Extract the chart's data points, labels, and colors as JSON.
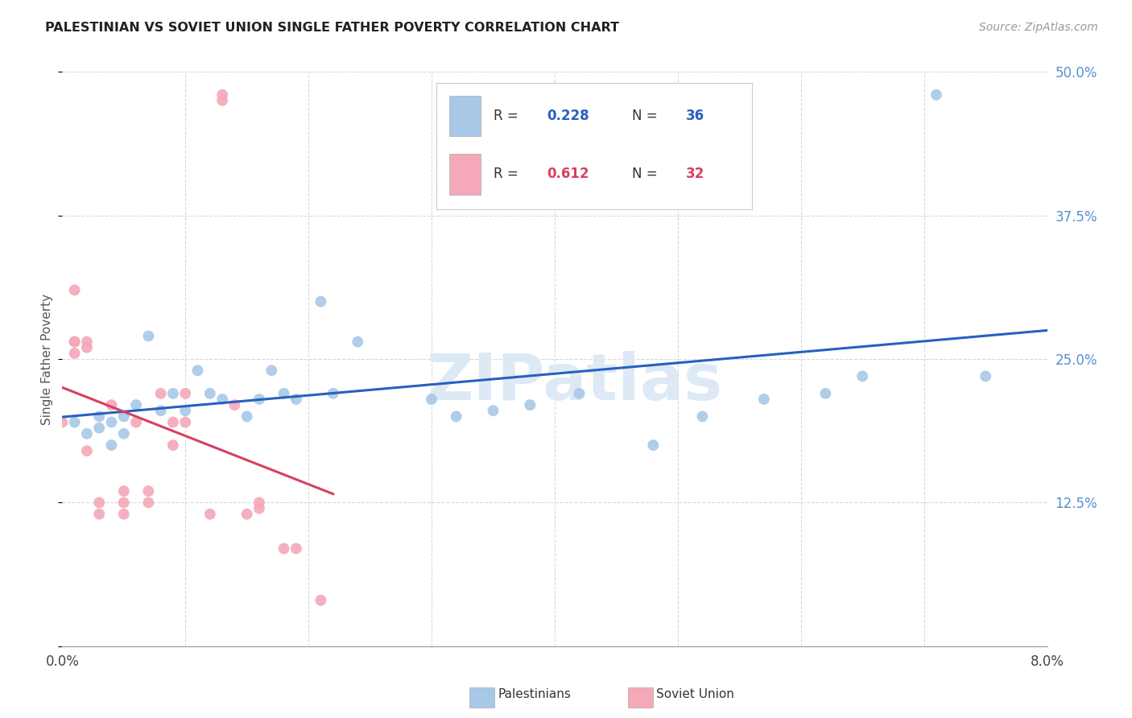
{
  "title": "PALESTINIAN VS SOVIET UNION SINGLE FATHER POVERTY CORRELATION CHART",
  "source": "Source: ZipAtlas.com",
  "ylabel": "Single Father Poverty",
  "xlim": [
    0.0,
    0.08
  ],
  "ylim": [
    0.0,
    0.5
  ],
  "xticks": [
    0.0,
    0.01,
    0.02,
    0.03,
    0.04,
    0.05,
    0.06,
    0.07,
    0.08
  ],
  "xticklabels": [
    "0.0%",
    "",
    "",
    "",
    "",
    "",
    "",
    "",
    "8.0%"
  ],
  "yticks": [
    0.0,
    0.125,
    0.25,
    0.375,
    0.5
  ],
  "yticklabels": [
    "",
    "12.5%",
    "25.0%",
    "37.5%",
    "50.0%"
  ],
  "blue_R": 0.228,
  "blue_N": 36,
  "pink_R": 0.612,
  "pink_N": 32,
  "blue_label": "Palestinians",
  "pink_label": "Soviet Union",
  "blue_color": "#a8c8e8",
  "pink_color": "#f4a8b8",
  "blue_line_color": "#2860c0",
  "pink_line_color": "#d84060",
  "background_color": "#ffffff",
  "grid_color": "#d8d8e4",
  "watermark": "ZIPatlas",
  "blue_points_x": [
    0.001,
    0.002,
    0.003,
    0.003,
    0.004,
    0.004,
    0.005,
    0.005,
    0.006,
    0.007,
    0.008,
    0.009,
    0.01,
    0.011,
    0.012,
    0.013,
    0.015,
    0.016,
    0.017,
    0.018,
    0.019,
    0.021,
    0.022,
    0.024,
    0.03,
    0.032,
    0.035,
    0.038,
    0.042,
    0.048,
    0.052,
    0.057,
    0.062,
    0.065,
    0.071,
    0.075
  ],
  "blue_points_y": [
    0.195,
    0.185,
    0.19,
    0.2,
    0.195,
    0.175,
    0.2,
    0.185,
    0.21,
    0.27,
    0.205,
    0.22,
    0.205,
    0.24,
    0.22,
    0.215,
    0.2,
    0.215,
    0.24,
    0.22,
    0.215,
    0.3,
    0.22,
    0.265,
    0.215,
    0.2,
    0.205,
    0.21,
    0.22,
    0.175,
    0.2,
    0.215,
    0.22,
    0.235,
    0.48,
    0.235
  ],
  "pink_points_x": [
    0.0,
    0.001,
    0.001,
    0.001,
    0.001,
    0.002,
    0.002,
    0.002,
    0.003,
    0.003,
    0.004,
    0.005,
    0.005,
    0.005,
    0.006,
    0.007,
    0.007,
    0.008,
    0.009,
    0.009,
    0.01,
    0.01,
    0.012,
    0.013,
    0.013,
    0.014,
    0.015,
    0.016,
    0.016,
    0.018,
    0.019,
    0.021
  ],
  "pink_points_y": [
    0.195,
    0.31,
    0.265,
    0.255,
    0.265,
    0.26,
    0.265,
    0.17,
    0.125,
    0.115,
    0.21,
    0.115,
    0.125,
    0.135,
    0.195,
    0.135,
    0.125,
    0.22,
    0.195,
    0.175,
    0.22,
    0.195,
    0.115,
    0.48,
    0.475,
    0.21,
    0.115,
    0.12,
    0.125,
    0.085,
    0.085,
    0.04
  ]
}
